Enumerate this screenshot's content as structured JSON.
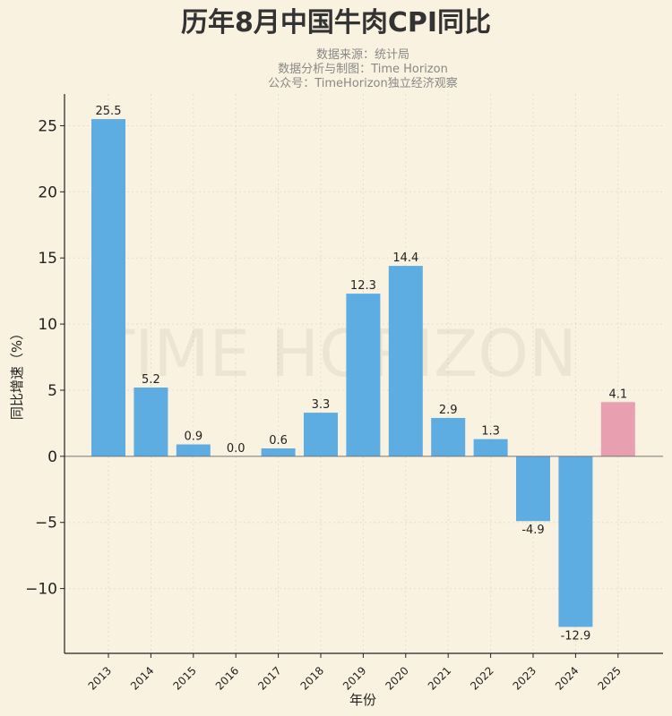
{
  "chart_data": {
    "type": "bar",
    "title": "历年8月中国牛肉CPI同比",
    "subtitle_lines": [
      "数据来源：统计局",
      "数据分析与制图：Time Horizon",
      "公众号：TimeHorizon独立经济观察"
    ],
    "watermark": "TIME HORIZON",
    "xlabel": "年份",
    "ylabel": "同比增速（%）",
    "categories": [
      "2013",
      "2014",
      "2015",
      "2016",
      "2017",
      "2018",
      "2019",
      "2020",
      "2021",
      "2022",
      "2023",
      "2024",
      "2025"
    ],
    "values": [
      25.5,
      5.2,
      0.9,
      0.0,
      0.6,
      3.3,
      12.3,
      14.4,
      2.9,
      1.3,
      -4.9,
      -12.9,
      4.1
    ],
    "data_labels": [
      "25.5",
      "5.2",
      "0.9",
      "0.0",
      "0.6",
      "3.3",
      "12.3",
      "14.4",
      "2.9",
      "1.3",
      "-4.9",
      "-12.9",
      "4.1"
    ],
    "yticks": [
      -10,
      -5,
      0,
      5,
      10,
      15,
      20,
      25
    ],
    "ytick_labels": [
      "−10",
      "−5",
      "0",
      "5",
      "10",
      "15",
      "20",
      "25"
    ],
    "ylim": [
      -14.9,
      27.4
    ],
    "grid": true,
    "colors": {
      "default": "#5DADE2",
      "highlight": "#E8A0B0",
      "background": "#FAF2E0"
    },
    "highlight_category": "2025"
  }
}
